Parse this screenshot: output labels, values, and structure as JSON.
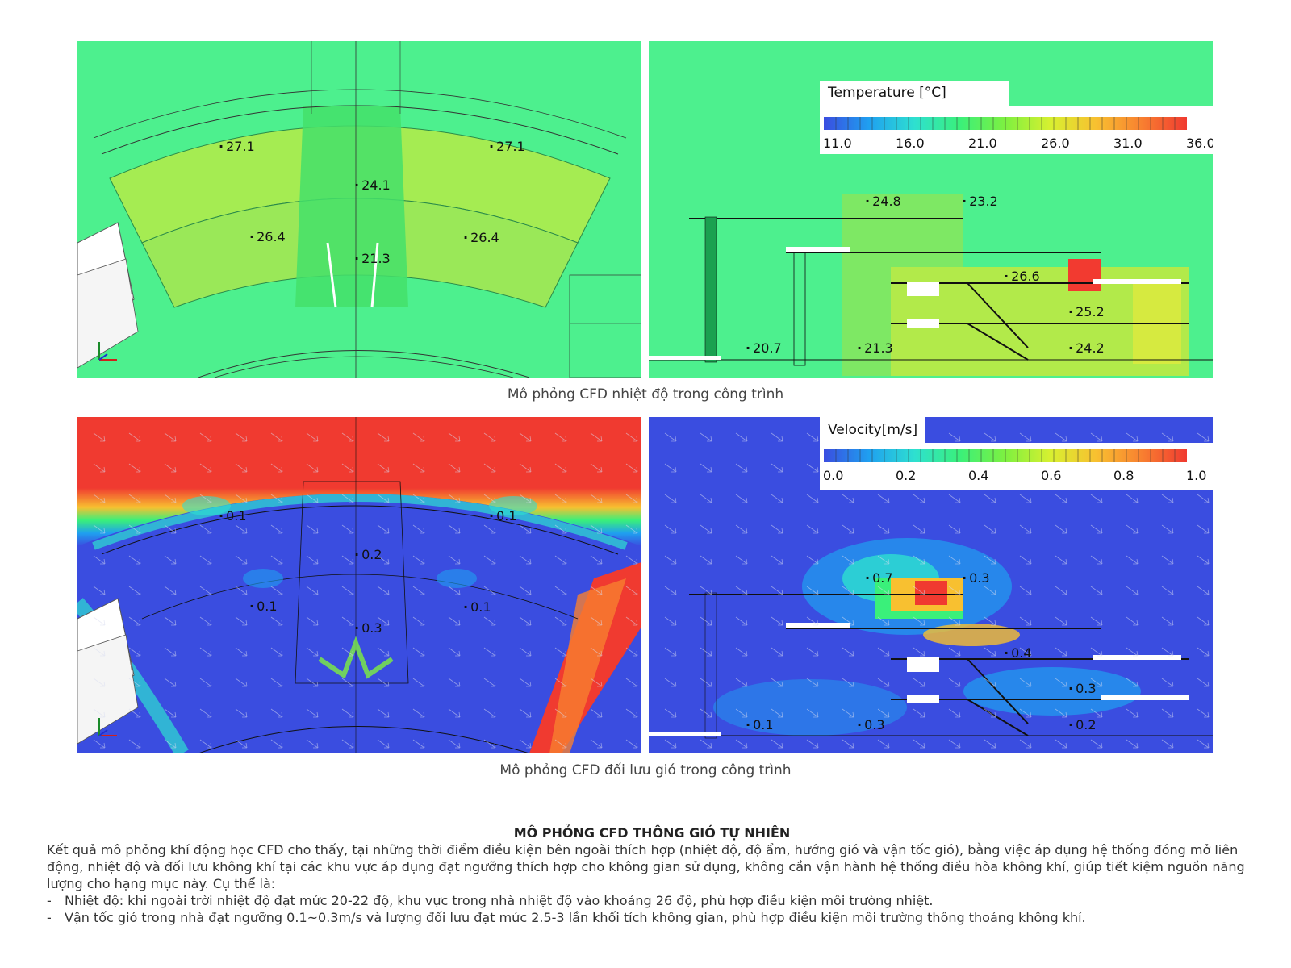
{
  "panels": {
    "temp_plan": {
      "probes": [
        "27.1",
        "27.1",
        "24.1",
        "26.4",
        "26.4",
        "21.3"
      ]
    },
    "temp_section": {
      "legend": {
        "title": "Temperature [°C]",
        "ticks": [
          "11.0",
          "16.0",
          "21.0",
          "26.0",
          "31.0",
          "36.0"
        ],
        "min": 11.0,
        "max": 36.0,
        "colors": [
          "#3a4de0",
          "#1fa0f0",
          "#2ee0d0",
          "#3af07a",
          "#7ef040",
          "#d8f030",
          "#f8c030",
          "#f88030",
          "#f03a30"
        ]
      },
      "probes": [
        "24.8",
        "23.2",
        "26.6",
        "25.2",
        "20.7",
        "21.3",
        "24.2"
      ]
    },
    "wind_plan": {
      "probes": [
        "0.1",
        "0.1",
        "0.2",
        "0.1",
        "0.1",
        "0.3"
      ]
    },
    "wind_section": {
      "legend": {
        "title": "Velocity[m/s]",
        "ticks": [
          "0.0",
          "0.2",
          "0.4",
          "0.6",
          "0.8",
          "1.0"
        ],
        "min": 0.0,
        "max": 1.0,
        "colors": [
          "#3a4de0",
          "#1fa0f0",
          "#2ee0d0",
          "#3af07a",
          "#7ef040",
          "#d8f030",
          "#f8c030",
          "#f88030",
          "#f03a30"
        ]
      },
      "probes": [
        "0.7",
        "0.3",
        "0.4",
        "0.3",
        "0.1",
        "0.3",
        "0.2"
      ]
    }
  },
  "captions": {
    "temperature": "Mô phỏng CFD nhiệt độ trong công trình",
    "wind": "Mô phỏng CFD đối lưu gió trong công trình"
  },
  "text": {
    "title": "MÔ PHỎNG CFD THÔNG GIÓ TỰ NHIÊN",
    "paragraph": "Kết quả mô phỏng khí động học CFD cho thấy, tại những thời điểm điều kiện bên ngoài thích hợp (nhiệt độ, độ ẩm, hướng gió và vận tốc gió), bằng việc áp dụng hệ thống đóng mở liên động, nhiệt độ và đối lưu không khí tại các khu vực áp dụng đạt ngưỡng thích hợp cho không gian sử dụng, không cần vận hành hệ thống điều hòa không khí, giúp tiết kiệm nguồn năng lượng cho hạng mục này. Cụ thể là:",
    "bullets": [
      "Nhiệt độ: khi ngoài trời nhiệt độ đạt mức 20-22 độ, khu vực trong nhà nhiệt độ vào khoảng 26 độ, phù hợp điều kiện môi trường nhiệt.",
      "Vận tốc gió trong nhà đạt ngưỡng 0.1~0.3m/s và lượng đối lưu đạt mức 2.5-3 lần khối tích không gian, phù hợp điều kiện môi trường thông thoáng không khí."
    ],
    "dash": "-"
  }
}
